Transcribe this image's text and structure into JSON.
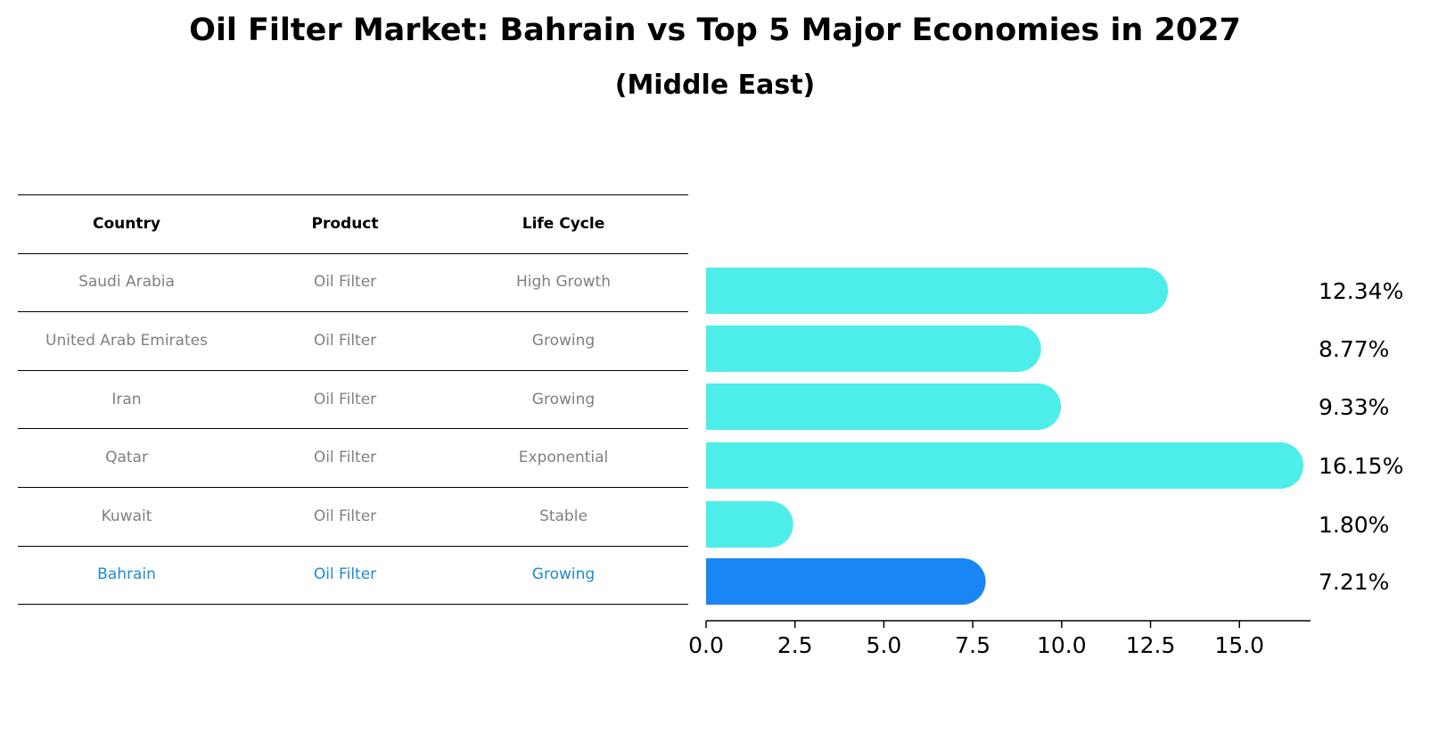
{
  "title": "Oil Filter Market: Bahrain vs Top 5 Major Economies in 2027",
  "subtitle": "(Middle East)",
  "table": {
    "headers": [
      "Country",
      "Product",
      "Life Cycle"
    ],
    "rows": [
      [
        "Saudi Arabia",
        "Oil Filter",
        "High Growth"
      ],
      [
        "United Arab Emirates",
        "Oil Filter",
        "Growing"
      ],
      [
        "Iran",
        "Oil Filter",
        "Growing"
      ],
      [
        "Qatar",
        "Oil Filter",
        "Exponential"
      ],
      [
        "Kuwait",
        "Oil Filter",
        "Stable"
      ],
      [
        "Bahrain",
        "Oil Filter",
        "Growing"
      ]
    ],
    "highlight_row": 5
  },
  "colors": {
    "bar": "#4deee9",
    "highlight_bar": "#1a86f5",
    "muted_text": "#808080",
    "highlight_text": "#1f8ad2"
  },
  "chart_data": {
    "type": "bar",
    "orientation": "horizontal",
    "categories": [
      "Saudi Arabia",
      "United Arab Emirates",
      "Iran",
      "Qatar",
      "Kuwait",
      "Bahrain"
    ],
    "values": [
      12.34,
      8.77,
      9.33,
      16.15,
      1.8,
      7.21
    ],
    "value_labels": [
      "12.34%",
      "8.77%",
      "9.33%",
      "16.15%",
      "1.80%",
      "7.21%"
    ],
    "highlight_index": 5,
    "xlim": [
      0,
      17
    ],
    "xticks": [
      0.0,
      2.5,
      5.0,
      7.5,
      10.0,
      12.5,
      15.0
    ],
    "xtick_labels": [
      "0.0",
      "2.5",
      "5.0",
      "7.5",
      "10.0",
      "12.5",
      "15.0"
    ],
    "title": "",
    "xlabel": "",
    "ylabel": "",
    "grid": false
  }
}
